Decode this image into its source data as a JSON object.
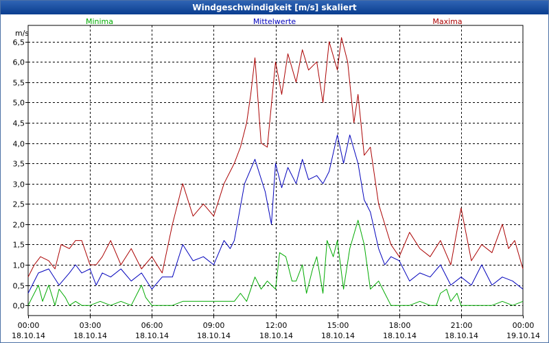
{
  "window": {
    "title": "Windgeschwindigkeit [m/s] skaliert"
  },
  "chart_data": {
    "type": "line",
    "title": "Windgeschwindigkeit [m/s] skaliert",
    "ylabel": "m/s",
    "xlabel": "",
    "ylim": [
      -0.25,
      6.9
    ],
    "xlim": [
      0,
      24
    ],
    "grid": true,
    "yticks": [
      0.0,
      0.5,
      1.0,
      1.5,
      2.0,
      2.5,
      3.0,
      3.5,
      4.0,
      4.5,
      5.0,
      5.5,
      6.0,
      6.5
    ],
    "ytick_labels": [
      "0,0",
      "0,5",
      "1,0",
      "1,5",
      "2,0",
      "2,5",
      "3,0",
      "3,5",
      "4,0",
      "4,5",
      "5,0",
      "5,5",
      "6,0",
      "6,5"
    ],
    "xticks": [
      {
        "h": 0,
        "time": "00:00",
        "date": "18.10.14"
      },
      {
        "h": 3,
        "time": "03:00",
        "date": "18.10.14"
      },
      {
        "h": 6,
        "time": "06:00",
        "date": "18.10.14"
      },
      {
        "h": 9,
        "time": "09:00",
        "date": "18.10.14"
      },
      {
        "h": 12,
        "time": "12:00",
        "date": "18.10.14"
      },
      {
        "h": 15,
        "time": "15:00",
        "date": "18.10.14"
      },
      {
        "h": 18,
        "time": "18:00",
        "date": "18.10.14"
      },
      {
        "h": 21,
        "time": "21:00",
        "date": "18.10.14"
      },
      {
        "h": 24,
        "time": "00:00",
        "date": "19.10.14"
      }
    ],
    "series": [
      {
        "name": "Minima",
        "color": "#00aa00",
        "x": [
          0,
          0.5,
          0.7,
          1.0,
          1.3,
          1.5,
          1.8,
          2.0,
          2.3,
          2.6,
          3.0,
          3.5,
          4.0,
          4.5,
          5.0,
          5.5,
          5.7,
          6.0,
          6.5,
          7.0,
          7.5,
          8.0,
          8.5,
          9.0,
          9.5,
          10.0,
          10.3,
          10.6,
          11.0,
          11.3,
          11.6,
          12.0,
          12.2,
          12.5,
          12.8,
          13.0,
          13.3,
          13.5,
          13.8,
          14.0,
          14.3,
          14.5,
          14.8,
          15.0,
          15.3,
          15.6,
          16.0,
          16.3,
          16.6,
          17.0,
          17.3,
          17.6,
          18.0,
          18.5,
          19.0,
          19.5,
          19.8,
          20.0,
          20.3,
          20.5,
          20.8,
          21.0,
          21.5,
          22.0,
          22.5,
          23.0,
          23.5,
          24.0
        ],
        "values": [
          0.0,
          0.5,
          0.1,
          0.5,
          0.0,
          0.4,
          0.2,
          0.0,
          0.1,
          0.0,
          0.0,
          0.1,
          0.0,
          0.1,
          0.0,
          0.5,
          0.2,
          0.0,
          0.0,
          0.0,
          0.1,
          0.1,
          0.1,
          0.1,
          0.1,
          0.1,
          0.3,
          0.1,
          0.7,
          0.4,
          0.6,
          0.4,
          1.3,
          1.2,
          0.6,
          0.6,
          1.0,
          0.3,
          0.9,
          1.2,
          0.3,
          1.6,
          1.2,
          1.6,
          0.4,
          1.4,
          2.1,
          1.5,
          0.4,
          0.6,
          0.3,
          0.0,
          0.0,
          0.0,
          0.1,
          0.0,
          0.0,
          0.3,
          0.4,
          0.1,
          0.3,
          0.0,
          0.0,
          0.0,
          0.0,
          0.1,
          0.0,
          0.1
        ]
      },
      {
        "name": "Mittelwerte",
        "color": "#0000bb",
        "x": [
          0,
          0.5,
          1.0,
          1.5,
          2.0,
          2.3,
          2.6,
          3.0,
          3.3,
          3.6,
          4.0,
          4.5,
          5.0,
          5.5,
          6.0,
          6.5,
          7.0,
          7.5,
          8.0,
          8.5,
          9.0,
          9.5,
          9.8,
          10.0,
          10.5,
          11.0,
          11.5,
          11.8,
          12.0,
          12.3,
          12.6,
          13.0,
          13.3,
          13.6,
          14.0,
          14.3,
          14.6,
          15.0,
          15.3,
          15.6,
          16.0,
          16.3,
          16.6,
          17.0,
          17.3,
          17.6,
          18.0,
          18.5,
          19.0,
          19.5,
          20.0,
          20.5,
          21.0,
          21.5,
          22.0,
          22.5,
          23.0,
          23.5,
          24.0
        ],
        "values": [
          0.3,
          0.8,
          0.9,
          0.5,
          0.8,
          1.0,
          0.8,
          0.9,
          0.5,
          0.8,
          0.7,
          0.9,
          0.6,
          0.8,
          0.4,
          0.7,
          0.7,
          1.5,
          1.1,
          1.2,
          1.0,
          1.6,
          1.4,
          1.6,
          3.0,
          3.6,
          2.8,
          2.0,
          3.5,
          2.9,
          3.4,
          3.0,
          3.6,
          3.1,
          3.2,
          3.0,
          3.3,
          4.2,
          3.5,
          4.2,
          3.5,
          2.6,
          2.3,
          1.4,
          1.0,
          1.2,
          1.1,
          0.6,
          0.8,
          0.7,
          1.0,
          0.5,
          0.7,
          0.5,
          1.0,
          0.5,
          0.7,
          0.6,
          0.4
        ]
      },
      {
        "name": "Maxima",
        "color": "#aa0000",
        "x": [
          0,
          0.3,
          0.6,
          1.0,
          1.3,
          1.6,
          2.0,
          2.3,
          2.6,
          3.0,
          3.3,
          3.6,
          4.0,
          4.5,
          5.0,
          5.5,
          6.0,
          6.5,
          7.0,
          7.5,
          8.0,
          8.5,
          9.0,
          9.5,
          10.0,
          10.3,
          10.6,
          10.8,
          11.0,
          11.3,
          11.6,
          12.0,
          12.3,
          12.6,
          13.0,
          13.3,
          13.6,
          14.0,
          14.3,
          14.6,
          15.0,
          15.2,
          15.5,
          15.8,
          16.0,
          16.3,
          16.6,
          17.0,
          17.3,
          17.6,
          18.0,
          18.5,
          19.0,
          19.5,
          20.0,
          20.5,
          21.0,
          21.5,
          22.0,
          22.5,
          23.0,
          23.3,
          23.6,
          24.0
        ],
        "values": [
          0.7,
          1.0,
          1.2,
          1.1,
          0.9,
          1.5,
          1.4,
          1.6,
          1.6,
          1.0,
          1.0,
          1.2,
          1.6,
          1.0,
          1.4,
          0.9,
          1.2,
          0.8,
          2.0,
          3.0,
          2.2,
          2.5,
          2.2,
          3.0,
          3.5,
          3.9,
          4.5,
          5.2,
          6.1,
          4.0,
          3.9,
          6.0,
          5.2,
          6.2,
          5.5,
          6.3,
          5.8,
          6.0,
          5.0,
          6.5,
          5.8,
          6.6,
          6.0,
          4.5,
          5.2,
          3.7,
          3.9,
          2.5,
          2.0,
          1.5,
          1.2,
          1.8,
          1.4,
          1.2,
          1.6,
          1.0,
          2.4,
          1.1,
          1.5,
          1.3,
          2.0,
          1.4,
          1.6,
          0.9
        ]
      }
    ]
  }
}
